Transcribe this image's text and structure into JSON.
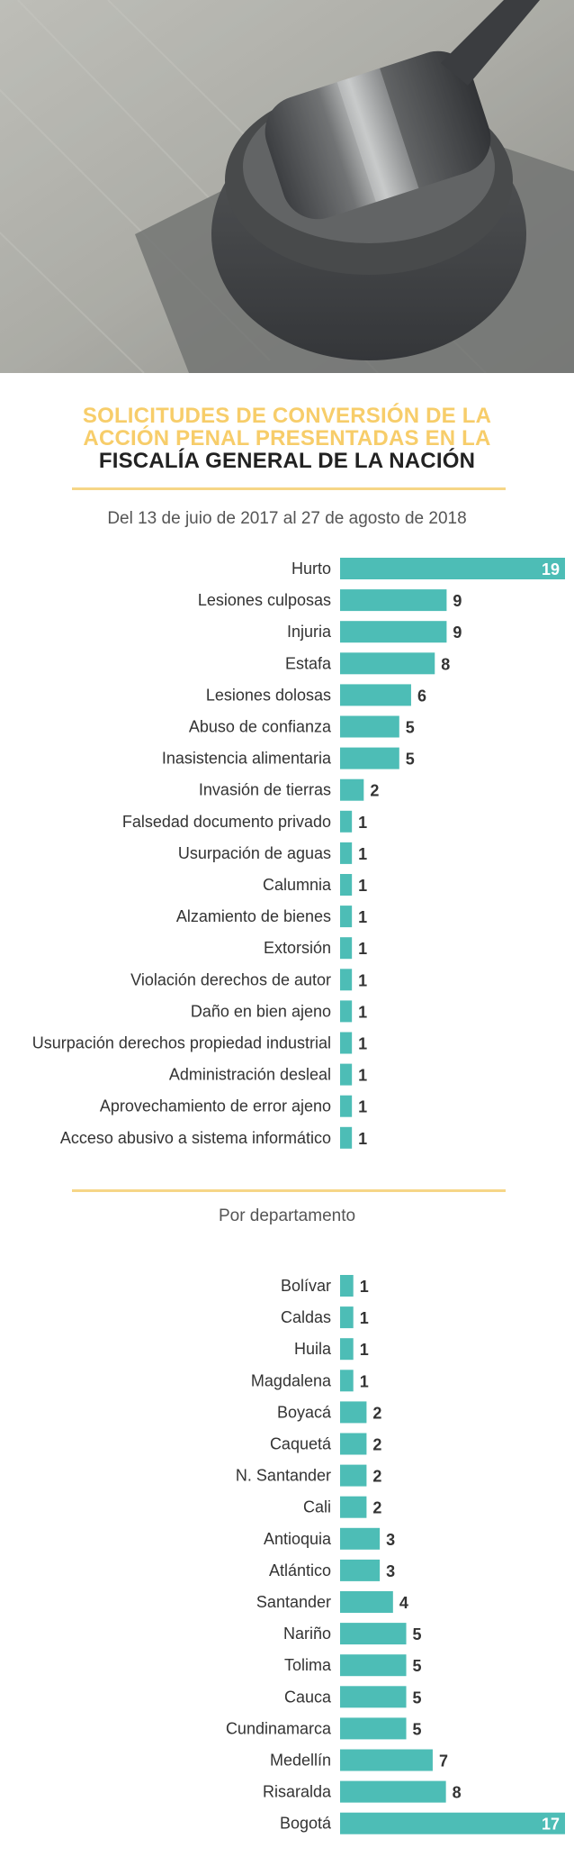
{
  "header": {
    "title_line1": "SOLICITUDES DE CONVERSIÓN DE LA",
    "title_line2": "ACCIÓN PENAL PRESENTADAS EN LA",
    "title_line3": "FISCALÍA GENERAL DE LA NACIÓN",
    "subtitle": "Del 13 de juio de 2017 al 27 de agosto de 2018"
  },
  "section2": {
    "subtitle": "Por departamento"
  },
  "colors": {
    "bar": "#4dbdb6",
    "accent_yellow": "#f7cd6a",
    "rule": "#f6d687",
    "label": "#333333",
    "value": "#333333",
    "value_inside": "#ffffff"
  },
  "chart_data": [
    {
      "type": "bar",
      "orientation": "horizontal",
      "categories": [
        "Hurto",
        "Lesiones culposas",
        "Injuria",
        "Estafa",
        "Lesiones dolosas",
        "Abuso de confianza",
        "Inasistencia alimentaria",
        "Invasión de tierras",
        "Falsedad documento privado",
        "Usurpación de aguas",
        "Calumnia",
        "Alzamiento de bienes",
        "Extorsión",
        "Violación derechos de autor",
        "Daño en bien ajeno",
        "Usurpación derechos propiedad industrial",
        "Administración desleal",
        "Aprovechamiento de error ajeno",
        "Acceso abusivo a sistema informático"
      ],
      "values": [
        19,
        9,
        9,
        8,
        6,
        5,
        5,
        2,
        1,
        1,
        1,
        1,
        1,
        1,
        1,
        1,
        1,
        1,
        1
      ],
      "data_labels": [
        "19",
        "9",
        "9",
        "8",
        "6",
        "5",
        "5",
        "2",
        "1",
        "1",
        "1",
        "1",
        "1",
        "1",
        "1",
        "1",
        "1",
        "1",
        "1"
      ]
    },
    {
      "type": "bar",
      "orientation": "horizontal",
      "categories": [
        "Bolívar",
        "Caldas",
        "Huila",
        "Magdalena",
        "Boyacá",
        "Caquetá",
        "N. Santander",
        "Cali",
        "Antioquia",
        "Atlántico",
        "Santander",
        "Nariño",
        "Tolima",
        "Cauca",
        "Cundinamarca",
        "Medellín",
        "Risaralda",
        "Bogotá"
      ],
      "values": [
        1,
        1,
        1,
        1,
        2,
        2,
        2,
        2,
        3,
        3,
        4,
        5,
        5,
        5,
        5,
        7,
        8,
        17
      ],
      "data_labels": [
        "1",
        "1",
        "1",
        "1",
        "2",
        "2",
        "2",
        "2",
        "3",
        "3",
        "4",
        "5",
        "5",
        "5",
        "5",
        "7",
        "8",
        "17"
      ]
    }
  ]
}
